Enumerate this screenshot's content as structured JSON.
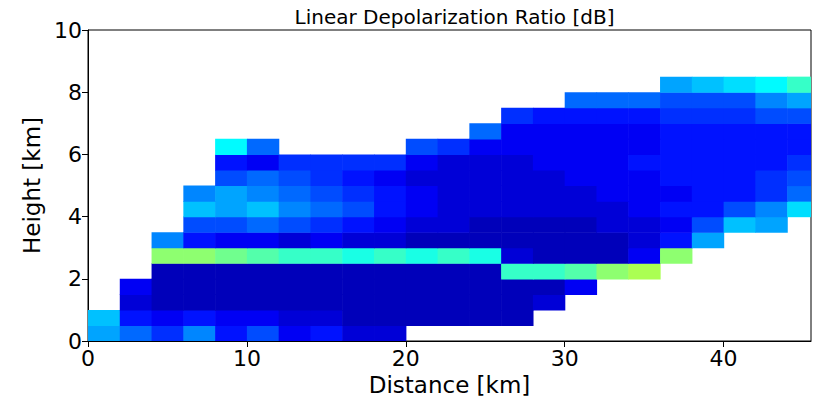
{
  "chart_data": {
    "type": "heatmap",
    "title": "Linear Depolarization Ratio [dB]",
    "x_label": "Distance [km]",
    "y_label": "Height [km]",
    "xlim": [
      0,
      45.5
    ],
    "ylim": [
      0,
      10
    ],
    "xticks": [
      0,
      10,
      20,
      30,
      40
    ],
    "yticks": [
      0,
      2,
      4,
      6,
      8,
      10
    ],
    "grid": false,
    "color_range": [
      -35,
      0
    ],
    "x_edges": [
      0,
      2,
      4,
      6,
      8,
      10,
      12,
      14,
      16,
      18,
      20,
      22,
      24,
      26,
      28,
      30,
      32,
      34,
      36,
      38,
      40,
      42,
      44,
      46
    ],
    "y_edges": [
      0,
      0.5,
      1,
      1.5,
      2,
      2.5,
      3,
      3.5,
      4,
      4.5,
      5,
      5.5,
      6,
      6.5,
      7,
      7.5,
      8,
      8.5
    ],
    "cells": [
      [
        -25,
        -27,
        -29,
        -26,
        -30,
        -28,
        -31,
        -30,
        -32,
        -32,
        null,
        null,
        null,
        null,
        null,
        null,
        null,
        null,
        null,
        null,
        null,
        null,
        null
      ],
      [
        -24,
        -30,
        -31,
        -30,
        -31,
        -31,
        -32,
        -32,
        -33,
        -33,
        -33,
        -33,
        -33,
        -33,
        null,
        null,
        null,
        null,
        null,
        null,
        null,
        null,
        null
      ],
      [
        null,
        -32,
        -33,
        -33,
        -33,
        -33,
        -33,
        -33,
        -33,
        -33,
        -33,
        -33,
        -33,
        -33,
        -32,
        null,
        null,
        null,
        null,
        null,
        null,
        null,
        null
      ],
      [
        null,
        -31,
        -33,
        -33,
        -33,
        -33,
        -33,
        -33,
        -33,
        -33,
        -33,
        -33,
        -33,
        -33,
        -33,
        -31,
        null,
        null,
        null,
        null,
        null,
        null,
        null
      ],
      [
        null,
        null,
        -33,
        -33,
        -33,
        -33,
        -33,
        -33,
        -33,
        -33,
        -33,
        -33,
        -33,
        -20,
        -20,
        -19,
        -17,
        -16,
        null,
        null,
        null,
        null,
        null
      ],
      [
        null,
        null,
        -17,
        -17,
        -18,
        -19,
        -20,
        -20,
        -21,
        -20,
        -21,
        -20,
        -21,
        -32,
        -33,
        -33,
        -33,
        -31,
        -17,
        null,
        null,
        null,
        null
      ],
      [
        null,
        null,
        -26,
        -30,
        -31,
        -31,
        -32,
        -31,
        -32,
        -32,
        -33,
        -33,
        -33,
        -33,
        -33,
        -33,
        -33,
        -32,
        -30,
        -25,
        null,
        null,
        null
      ],
      [
        null,
        null,
        null,
        -28,
        -28,
        -27,
        -28,
        -29,
        -30,
        -31,
        -32,
        -32,
        -33,
        -33,
        -33,
        -33,
        -32,
        -32,
        -31,
        -28,
        -24,
        -25,
        null
      ],
      [
        null,
        null,
        null,
        -24,
        -25,
        -24,
        -26,
        -27,
        -28,
        -30,
        -31,
        -32,
        -32,
        -32,
        -32,
        -32,
        -32,
        -31,
        -30,
        -30,
        -28,
        -26,
        -23
      ],
      [
        null,
        null,
        null,
        -26,
        -25,
        -26,
        -27,
        -28,
        -29,
        -30,
        -31,
        -32,
        -32,
        -32,
        -32,
        -32,
        -31,
        -31,
        -31,
        -30,
        -30,
        -29,
        -27
      ],
      [
        null,
        null,
        null,
        null,
        -28,
        -27,
        -28,
        -29,
        -30,
        -31,
        -32,
        -32,
        -32,
        -32,
        -32,
        -31,
        -31,
        -31,
        -30,
        -30,
        -30,
        -29,
        -28
      ],
      [
        null,
        null,
        null,
        null,
        -30,
        -31,
        -29,
        -29,
        -29,
        -29,
        -31,
        -32,
        -32,
        -32,
        -31,
        -31,
        -31,
        -30,
        -30,
        -30,
        -30,
        -30,
        -29
      ],
      [
        null,
        null,
        null,
        null,
        -22,
        -27,
        null,
        null,
        null,
        null,
        -28,
        -29,
        -31,
        -31,
        -31,
        -31,
        -31,
        -31,
        -30,
        -30,
        -30,
        -30,
        -30
      ],
      [
        null,
        null,
        null,
        null,
        null,
        null,
        null,
        null,
        null,
        null,
        null,
        null,
        -27,
        -31,
        -31,
        -31,
        -31,
        -31,
        -30,
        -30,
        -30,
        -30,
        -30
      ],
      [
        null,
        null,
        null,
        null,
        null,
        null,
        null,
        null,
        null,
        null,
        null,
        null,
        null,
        -29,
        -30,
        -30,
        -30,
        -30,
        -29,
        -29,
        -29,
        -28,
        -28
      ],
      [
        null,
        null,
        null,
        null,
        null,
        null,
        null,
        null,
        null,
        null,
        null,
        null,
        null,
        null,
        null,
        -27,
        -27,
        -27,
        -28,
        -28,
        -28,
        -26,
        -25
      ],
      [
        null,
        null,
        null,
        null,
        null,
        null,
        null,
        null,
        null,
        null,
        null,
        null,
        null,
        null,
        null,
        null,
        null,
        null,
        -25,
        -24,
        -23,
        -22,
        -20
      ]
    ]
  }
}
